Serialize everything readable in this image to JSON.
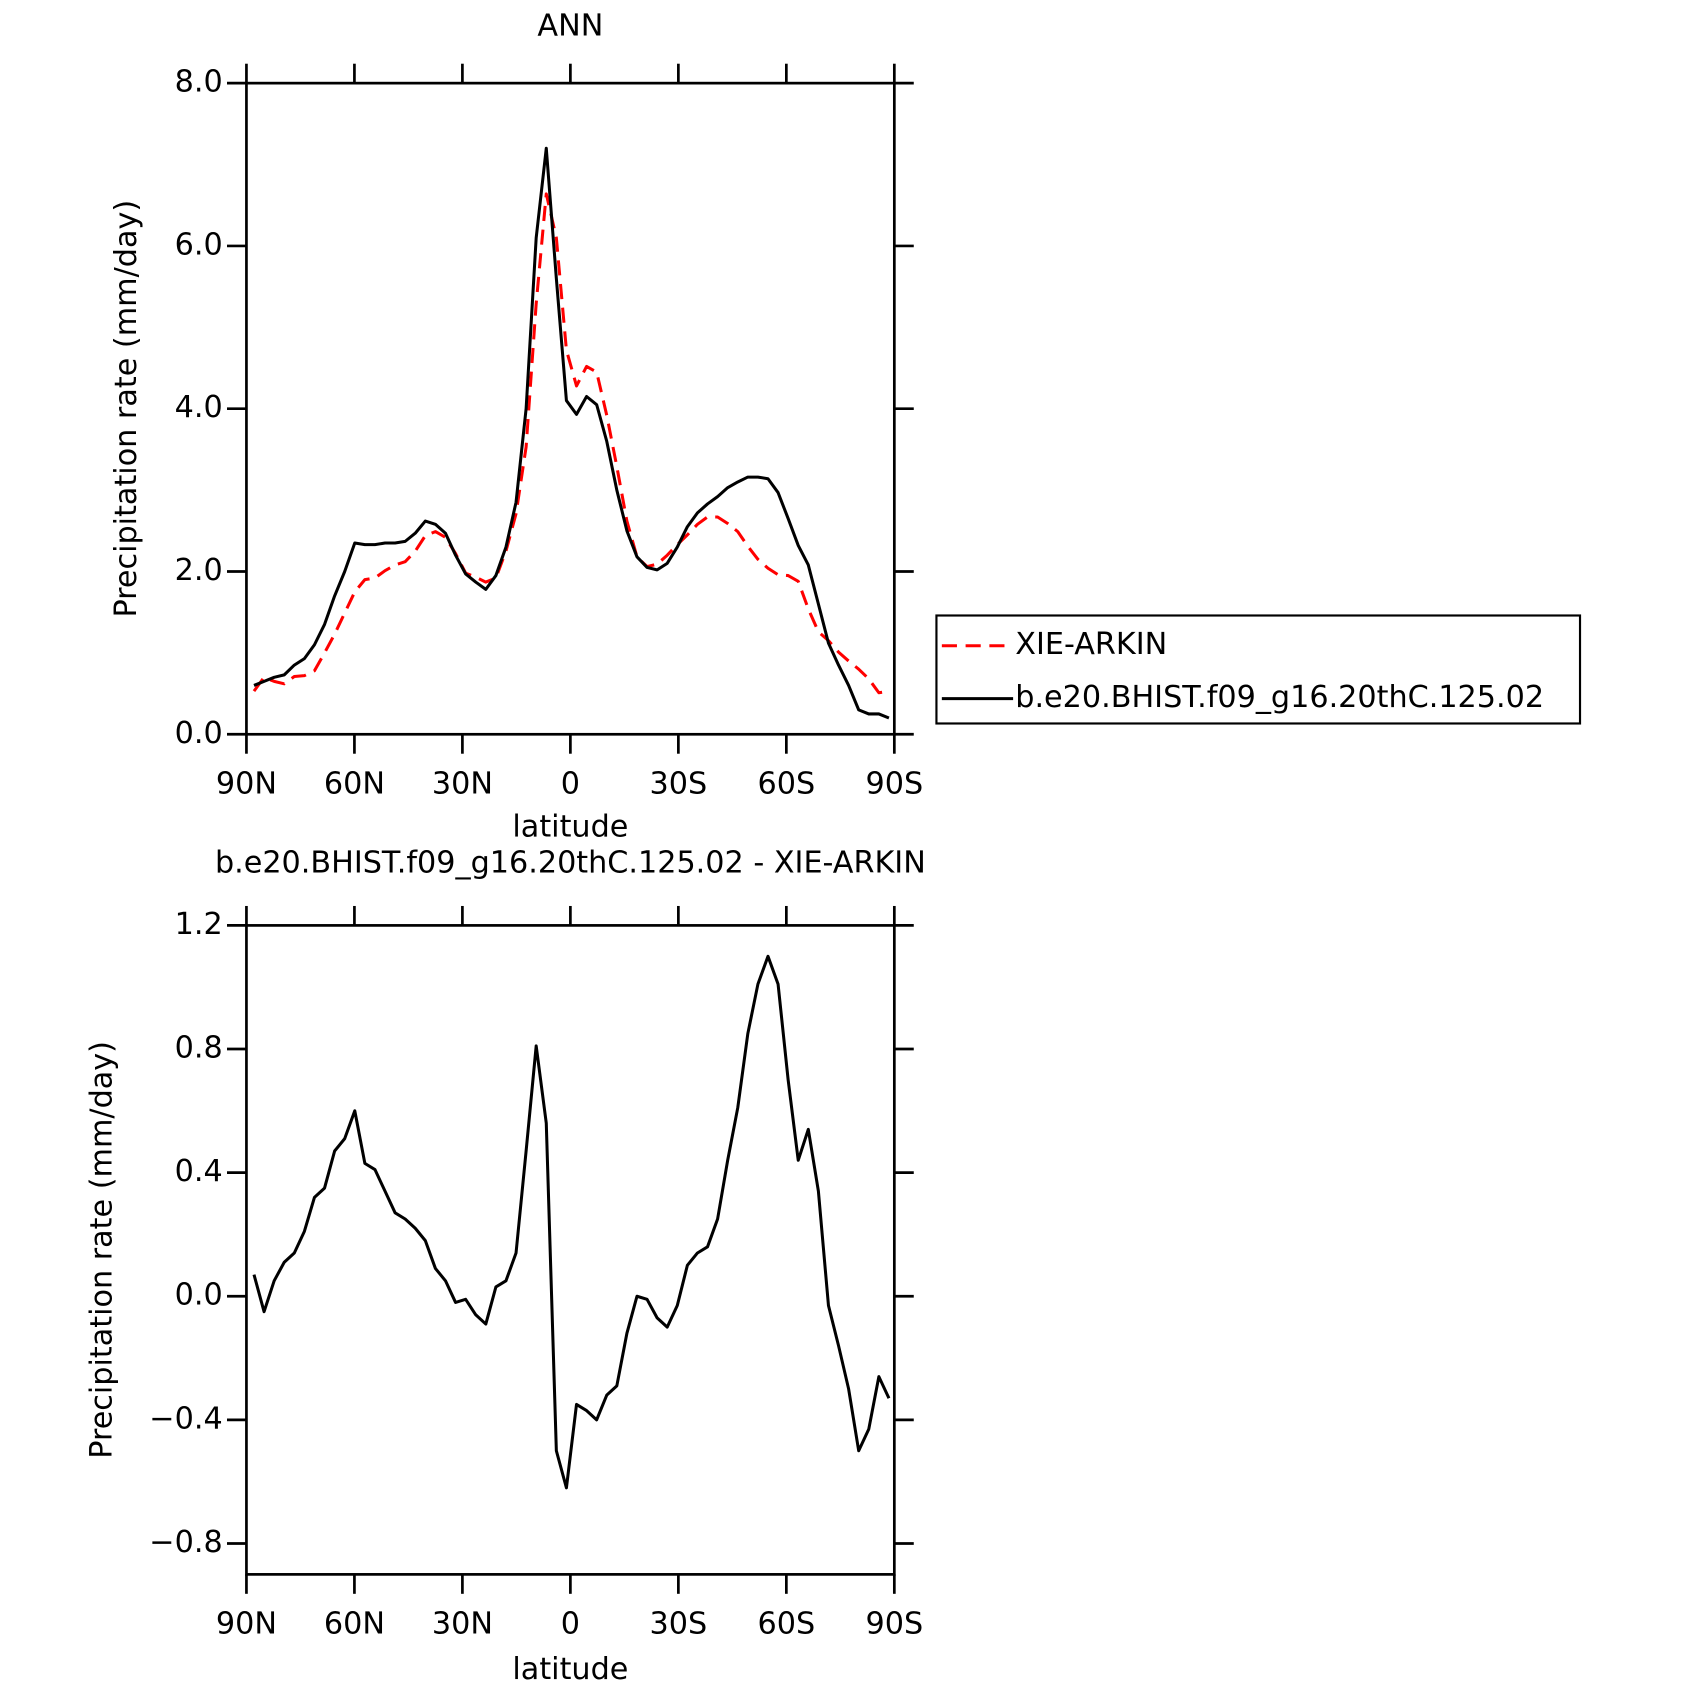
{
  "chart_data": [
    {
      "type": "line",
      "title": "ANN",
      "xlabel": "latitude",
      "ylabel": "Precipitation rate (mm/day)",
      "x": [
        87.9,
        85.1,
        82.3,
        79.5,
        76.7,
        73.9,
        71.1,
        68.3,
        65.5,
        62.7,
        59.9,
        57.1,
        54.3,
        51.5,
        48.7,
        45.9,
        43.1,
        40.3,
        37.5,
        34.7,
        31.9,
        29.1,
        26.3,
        23.5,
        20.7,
        17.9,
        15.1,
        12.3,
        9.5,
        6.7,
        3.9,
        1.1,
        -1.7,
        -4.5,
        -7.3,
        -10.1,
        -12.9,
        -15.7,
        -18.5,
        -21.3,
        -24.1,
        -26.9,
        -29.7,
        -32.5,
        -35.3,
        -38.1,
        -40.9,
        -43.7,
        -46.5,
        -49.3,
        -52.1,
        -54.9,
        -57.7,
        -60.5,
        -63.3,
        -66.1,
        -68.9,
        -71.7,
        -74.5,
        -77.3,
        -80.1,
        -82.9,
        -85.7,
        -88.5
      ],
      "series": [
        {
          "name": "XIE-ARKIN",
          "color": "#ff0000",
          "line_style": "dashed",
          "values": [
            0.53,
            0.7,
            0.65,
            0.62,
            0.71,
            0.72,
            0.78,
            1.0,
            1.23,
            1.49,
            1.75,
            1.9,
            1.92,
            2.01,
            2.08,
            2.12,
            2.25,
            2.44,
            2.49,
            2.42,
            2.22,
            1.98,
            1.93,
            1.87,
            1.92,
            2.25,
            2.71,
            3.53,
            5.29,
            6.64,
            6.1,
            4.72,
            4.28,
            4.52,
            4.45,
            3.92,
            3.29,
            2.62,
            2.18,
            2.06,
            2.09,
            2.2,
            2.33,
            2.45,
            2.58,
            2.67,
            2.67,
            2.59,
            2.49,
            2.31,
            2.15,
            2.04,
            1.96,
            1.95,
            1.88,
            1.54,
            1.26,
            1.15,
            1.01,
            0.9,
            0.8,
            0.68,
            0.51,
            0.53
          ]
        },
        {
          "name": "b.e20.BHIST.f09_g16.20thC.125.02",
          "color": "#000000",
          "line_style": "solid",
          "values": [
            0.6,
            0.65,
            0.7,
            0.73,
            0.85,
            0.93,
            1.1,
            1.35,
            1.7,
            2.0,
            2.35,
            2.33,
            2.33,
            2.35,
            2.35,
            2.37,
            2.47,
            2.62,
            2.58,
            2.47,
            2.2,
            1.97,
            1.87,
            1.78,
            1.95,
            2.3,
            2.85,
            4.0,
            6.1,
            7.2,
            5.6,
            4.1,
            3.93,
            4.15,
            4.05,
            3.6,
            3.0,
            2.5,
            2.18,
            2.05,
            2.02,
            2.1,
            2.3,
            2.55,
            2.72,
            2.83,
            2.92,
            3.03,
            3.1,
            3.16,
            3.16,
            3.14,
            2.97,
            2.65,
            2.32,
            2.08,
            1.6,
            1.12,
            0.85,
            0.6,
            0.3,
            0.25,
            0.25,
            0.2
          ]
        }
      ],
      "xlim": [
        90,
        -90
      ],
      "xticks": [
        {
          "value": 90,
          "label": "90N"
        },
        {
          "value": 60,
          "label": "60N"
        },
        {
          "value": 30,
          "label": "30N"
        },
        0,
        {
          "value": -30,
          "label": "30S"
        },
        {
          "value": -60,
          "label": "60S"
        },
        {
          "value": -90,
          "label": "90S"
        }
      ],
      "ylim": [
        0,
        8
      ],
      "yticks": [
        {
          "value": 0,
          "label": "0.0"
        },
        {
          "value": 2,
          "label": "2.0"
        },
        {
          "value": 4,
          "label": "4.0"
        },
        {
          "value": 6,
          "label": "6.0"
        },
        {
          "value": 8,
          "label": "8.0"
        }
      ],
      "legend": "outside-right"
    },
    {
      "type": "line",
      "title": "b.e20.BHIST.f09_g16.20thC.125.02 - XIE-ARKIN",
      "xlabel": "latitude",
      "ylabel": "Precipitation rate (mm/day)",
      "x": [
        87.9,
        85.1,
        82.3,
        79.5,
        76.7,
        73.9,
        71.1,
        68.3,
        65.5,
        62.7,
        59.9,
        57.1,
        54.3,
        51.5,
        48.7,
        45.9,
        43.1,
        40.3,
        37.5,
        34.7,
        31.9,
        29.1,
        26.3,
        23.5,
        20.7,
        17.9,
        15.1,
        12.3,
        9.5,
        6.7,
        3.9,
        1.1,
        -1.7,
        -4.5,
        -7.3,
        -10.1,
        -12.9,
        -15.7,
        -18.5,
        -21.3,
        -24.1,
        -26.9,
        -29.7,
        -32.5,
        -35.3,
        -38.1,
        -40.9,
        -43.7,
        -46.5,
        -49.3,
        -52.1,
        -54.9,
        -57.7,
        -60.5,
        -63.3,
        -66.1,
        -68.9,
        -71.7,
        -74.5,
        -77.3,
        -80.1,
        -82.9,
        -85.7,
        -88.5
      ],
      "series": [
        {
          "color": "#000000",
          "line_style": "solid",
          "values": [
            0.07,
            -0.05,
            0.05,
            0.11,
            0.14,
            0.21,
            0.32,
            0.35,
            0.47,
            0.51,
            0.6,
            0.43,
            0.41,
            0.34,
            0.27,
            0.25,
            0.22,
            0.18,
            0.09,
            0.05,
            -0.02,
            -0.01,
            -0.06,
            -0.09,
            0.03,
            0.05,
            0.14,
            0.47,
            0.81,
            0.56,
            -0.5,
            -0.62,
            -0.35,
            -0.37,
            -0.4,
            -0.32,
            -0.29,
            -0.12,
            0.0,
            -0.01,
            -0.07,
            -0.1,
            -0.03,
            0.1,
            0.14,
            0.16,
            0.25,
            0.44,
            0.61,
            0.85,
            1.01,
            1.1,
            1.01,
            0.7,
            0.44,
            0.54,
            0.34,
            -0.03,
            -0.16,
            -0.3,
            -0.5,
            -0.43,
            -0.26,
            -0.33
          ]
        }
      ],
      "xlim": [
        90,
        -90
      ],
      "xticks": [
        {
          "value": 90,
          "label": "90N"
        },
        {
          "value": 60,
          "label": "60N"
        },
        {
          "value": 30,
          "label": "30N"
        },
        0,
        {
          "value": -30,
          "label": "30S"
        },
        {
          "value": -60,
          "label": "60S"
        },
        {
          "value": -90,
          "label": "90S"
        }
      ],
      "ylim": [
        -0.9,
        1.2
      ],
      "yticks": [
        {
          "value": -0.8,
          "label": "−0.8"
        },
        {
          "value": -0.4,
          "label": "−0.4"
        },
        {
          "value": 0,
          "label": "0.0"
        },
        0.4,
        0.8,
        1.2
      ]
    }
  ]
}
